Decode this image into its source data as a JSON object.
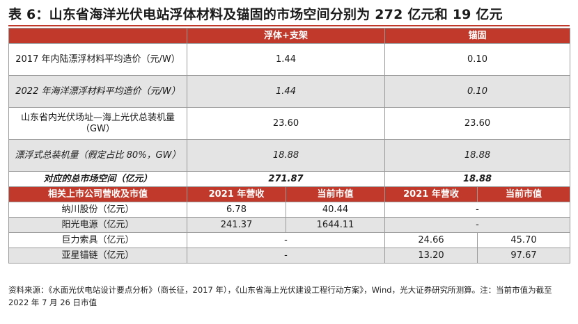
{
  "title": "表 6：山东省海洋光伏电站浮体材料及锚固的市场空间分别为 272 亿元和 19 亿元",
  "header": {
    "empty": "",
    "col1": "浮体+支架",
    "col2": "锚固"
  },
  "rows": [
    {
      "label": "2017 年内陆漂浮材料平均造价（元/W）",
      "v1": "1.44",
      "v2": "0.10"
    },
    {
      "label": "2022 年海洋漂浮材料平均造价（元/W）",
      "v1": "1.44",
      "v2": "0.10"
    },
    {
      "label": "山东省内光伏场址—海上光伏总装机量（GW）",
      "v1": "23.60",
      "v2": "23.60"
    },
    {
      "label": "漂浮式总装机量（假定占比 80%，GW）",
      "v1": "18.88",
      "v2": "18.88"
    },
    {
      "label": "对应的总市场空间（亿元）",
      "v1": "271.87",
      "v2": "18.88"
    }
  ],
  "subheader": {
    "label": "相关上市公司营收及市值",
    "rev1": "2021 年营收",
    "cap1": "当前市值",
    "rev2": "2021 年营收",
    "cap2": "当前市值"
  },
  "companies": [
    {
      "name": "纳川股份（亿元）",
      "rev1": "6.78",
      "cap1": "40.44",
      "rest": "-"
    },
    {
      "name": "阳光电源（亿元）",
      "rev1": "241.37",
      "cap1": "1644.11",
      "rest": "-"
    },
    {
      "name": "巨力索具（亿元）",
      "first": "-",
      "rev2": "24.66",
      "cap2": "45.70"
    },
    {
      "name": "亚星锚链（亿元）",
      "first": "-",
      "rev2": "13.20",
      "cap2": "97.67"
    }
  ],
  "source": "资料来源：《水面光伏电站设计要点分析》（商长征，2017 年），《山东省海上光伏建设工程行动方案》，Wind，光大证券研究所测算。注：当前市值为截至 2022 年 7 月 26 日市值"
}
